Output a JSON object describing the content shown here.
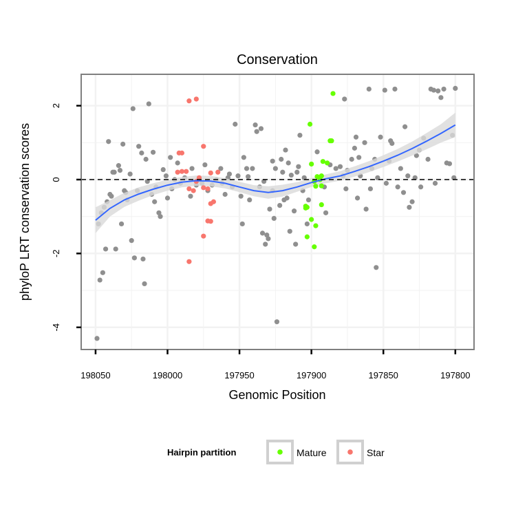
{
  "chart_data": {
    "type": "scatter",
    "title": "Conservation",
    "xlabel": "Genomic Position",
    "ylabel": "phyloP LRT conservation scores",
    "x_reversed": true,
    "xlim": [
      198060,
      197787
    ],
    "ylim": [
      -4.6,
      2.85
    ],
    "x_ticks": [
      198050,
      198000,
      197950,
      197900,
      197850,
      197800
    ],
    "y_ticks": [
      2,
      0,
      -2,
      -4
    ],
    "reference_line": {
      "y": 0,
      "style": "dashed",
      "color": "#000000"
    },
    "grid": true,
    "legend": {
      "title": "Hairpin partition",
      "position": "bottom",
      "entries": [
        {
          "label": "Mature",
          "color": "#66ff00"
        },
        {
          "label": "Star",
          "color": "#f8766d"
        }
      ]
    },
    "colors": {
      "background": "#ffffff",
      "gray_points": "#8f8f8f",
      "smooth_line": "#3366ff",
      "ribbon": "#d9d9d9",
      "panel_border": "#7f7f7f",
      "gridlines": "#f2f2f2"
    },
    "smooth": {
      "method": "loess",
      "x": [
        198050,
        198040,
        198030,
        198020,
        198010,
        198000,
        197990,
        197980,
        197970,
        197960,
        197950,
        197940,
        197930,
        197920,
        197910,
        197900,
        197890,
        197880,
        197870,
        197860,
        197850,
        197840,
        197830,
        197820,
        197810,
        197800
      ],
      "y": [
        -1.1,
        -0.78,
        -0.55,
        -0.39,
        -0.26,
        -0.15,
        -0.07,
        -0.03,
        -0.04,
        -0.1,
        -0.2,
        -0.3,
        -0.35,
        -0.3,
        -0.2,
        -0.08,
        0.02,
        0.1,
        0.22,
        0.35,
        0.5,
        0.66,
        0.84,
        1.04,
        1.25,
        1.48
      ],
      "lower": [
        -1.45,
        -1.0,
        -0.74,
        -0.57,
        -0.42,
        -0.3,
        -0.21,
        -0.17,
        -0.18,
        -0.24,
        -0.34,
        -0.45,
        -0.52,
        -0.46,
        -0.33,
        -0.2,
        -0.1,
        -0.03,
        0.08,
        0.2,
        0.34,
        0.49,
        0.65,
        0.82,
        1.0,
        1.15
      ],
      "upper": [
        -0.75,
        -0.56,
        -0.36,
        -0.21,
        -0.1,
        0.0,
        0.07,
        0.11,
        0.1,
        0.04,
        -0.06,
        -0.15,
        -0.18,
        -0.14,
        -0.07,
        0.04,
        0.14,
        0.23,
        0.36,
        0.5,
        0.66,
        0.83,
        1.03,
        1.26,
        1.5,
        1.81
      ]
    },
    "series": [
      {
        "name": "Mature",
        "color": "#66ff00",
        "points": [
          [
            197901,
            1.5
          ],
          [
            197900,
            0.42
          ],
          [
            197892,
            0.49
          ],
          [
            197889,
            0.45
          ],
          [
            197887,
            1.05
          ],
          [
            197886,
            1.05
          ],
          [
            197896,
            0.08
          ],
          [
            197893,
            0.1
          ],
          [
            197898,
            -0.05
          ],
          [
            197894,
            0.0
          ],
          [
            197897,
            -0.18
          ],
          [
            197893,
            -0.17
          ],
          [
            197904,
            -0.72
          ],
          [
            197903,
            -0.75
          ],
          [
            197904,
            -0.77
          ],
          [
            197893,
            -0.68
          ],
          [
            197900,
            -1.08
          ],
          [
            197897,
            -1.25
          ],
          [
            197903,
            -1.55
          ],
          [
            197898,
            -1.82
          ],
          [
            197885,
            2.33
          ]
        ]
      },
      {
        "name": "Star",
        "color": "#f8766d",
        "points": [
          [
            197985,
            2.13
          ],
          [
            197980,
            2.18
          ],
          [
            197992,
            0.72
          ],
          [
            197990,
            0.72
          ],
          [
            197975,
            0.9
          ],
          [
            197993,
            0.2
          ],
          [
            197990,
            0.22
          ],
          [
            197987,
            0.22
          ],
          [
            197970,
            0.18
          ],
          [
            197965,
            0.2
          ],
          [
            197978,
            0.05
          ],
          [
            197980,
            -0.05
          ],
          [
            197975,
            -0.22
          ],
          [
            197972,
            -0.25
          ],
          [
            197985,
            -0.25
          ],
          [
            197982,
            -0.3
          ],
          [
            197968,
            -0.6
          ],
          [
            197970,
            -0.65
          ],
          [
            197972,
            -1.12
          ],
          [
            197970,
            -1.13
          ],
          [
            197975,
            -1.53
          ],
          [
            197985,
            -2.22
          ]
        ]
      },
      {
        "name": "",
        "color": "#8f8f8f",
        "points": [
          [
            198049,
            -4.3
          ],
          [
            198047,
            -2.72
          ],
          [
            198045,
            -2.52
          ],
          [
            198043,
            -1.88
          ],
          [
            198036,
            -1.88
          ],
          [
            198048,
            -1.2
          ],
          [
            198046,
            -0.9
          ],
          [
            198044,
            -0.75
          ],
          [
            198040,
            -0.4
          ],
          [
            198041,
            1.03
          ],
          [
            198038,
            0.2
          ],
          [
            198034,
            0.38
          ],
          [
            198033,
            0.25
          ],
          [
            198031,
            0.96
          ],
          [
            198030,
            -0.3
          ],
          [
            198028,
            -0.55
          ],
          [
            198025,
            -1.65
          ],
          [
            198024,
            1.92
          ],
          [
            198023,
            -2.12
          ],
          [
            198020,
            0.9
          ],
          [
            198018,
            0.72
          ],
          [
            198017,
            -2.15
          ],
          [
            198016,
            -2.82
          ],
          [
            198014,
            -0.05
          ],
          [
            198013,
            2.05
          ],
          [
            198010,
            0.74
          ],
          [
            198008,
            -0.2
          ],
          [
            198006,
            -0.9
          ],
          [
            198005,
            -1.0
          ],
          [
            198003,
            0.27
          ],
          [
            198000,
            -0.5
          ],
          [
            197998,
            0.6
          ],
          [
            197997,
            -0.25
          ],
          [
            197995,
            0.0
          ],
          [
            197991,
            -0.1
          ],
          [
            197988,
            0.05
          ],
          [
            197983,
            0.3
          ],
          [
            197980,
            -0.15
          ],
          [
            197978,
            0.0
          ],
          [
            197974,
            0.4
          ],
          [
            197972,
            -0.3
          ],
          [
            197969,
            -0.15
          ],
          [
            197966,
            0.0
          ],
          [
            197963,
            0.3
          ],
          [
            197958,
            0.05
          ],
          [
            197955,
            -0.2
          ],
          [
            197953,
            1.5
          ],
          [
            197951,
            0.1
          ],
          [
            197948,
            -1.2
          ],
          [
            197947,
            0.6
          ],
          [
            197945,
            0.3
          ],
          [
            197943,
            -0.55
          ],
          [
            197939,
            1.48
          ],
          [
            197938,
            1.3
          ],
          [
            197935,
            1.38
          ],
          [
            197932,
            -1.75
          ],
          [
            197930,
            -1.6
          ],
          [
            197929,
            -0.8
          ],
          [
            197927,
            -0.3
          ],
          [
            197925,
            0.3
          ],
          [
            197922,
            -0.7
          ],
          [
            197920,
            0.2
          ],
          [
            197918,
            0.8
          ],
          [
            197917,
            -0.5
          ],
          [
            197915,
            -1.4
          ],
          [
            197912,
            -0.85
          ],
          [
            197910,
            0.2
          ],
          [
            197908,
            1.2
          ],
          [
            197906,
            -0.3
          ],
          [
            197905,
            0.05
          ],
          [
            197903,
            -1.2
          ],
          [
            197924,
            -3.85
          ],
          [
            197931,
            -1.5
          ],
          [
            197926,
            -1.05
          ],
          [
            197921,
            0.55
          ],
          [
            197914,
            0.12
          ],
          [
            197880,
            0.35
          ],
          [
            197877,
            2.18
          ],
          [
            197875,
            0.25
          ],
          [
            197872,
            0.55
          ],
          [
            197870,
            0.85
          ],
          [
            197868,
            -0.5
          ],
          [
            197866,
            0.1
          ],
          [
            197863,
            1.0
          ],
          [
            197860,
            2.45
          ],
          [
            197858,
            0.3
          ],
          [
            197855,
            -2.38
          ],
          [
            197852,
            1.15
          ],
          [
            197849,
            2.42
          ],
          [
            197846,
            0.5
          ],
          [
            197844,
            0.98
          ],
          [
            197842,
            2.45
          ],
          [
            197840,
            -0.2
          ],
          [
            197838,
            0.3
          ],
          [
            197835,
            1.43
          ],
          [
            197832,
            -0.75
          ],
          [
            197830,
            -0.6
          ],
          [
            197828,
            0.05
          ],
          [
            197825,
            0.8
          ],
          [
            197822,
            1.12
          ],
          [
            197819,
            0.55
          ],
          [
            197817,
            2.45
          ],
          [
            197815,
            2.42
          ],
          [
            197812,
            2.4
          ],
          [
            197810,
            2.22
          ],
          [
            197808,
            2.45
          ],
          [
            197806,
            0.45
          ],
          [
            197804,
            0.43
          ],
          [
            197802,
            1.2
          ],
          [
            197800,
            2.47
          ],
          [
            197801,
            0.05
          ],
          [
            197883,
            0.3
          ],
          [
            197890,
            -0.9
          ],
          [
            197876,
            -0.25
          ],
          [
            197862,
            -0.8
          ],
          [
            197848,
            -0.1
          ],
          [
            197836,
            -0.35
          ],
          [
            197824,
            -0.2
          ],
          [
            197854,
            0.05
          ],
          [
            197867,
            0.6
          ],
          [
            197896,
            0.75
          ],
          [
            197902,
            -0.55
          ],
          [
            197911,
            -1.75
          ],
          [
            197936,
            -0.2
          ],
          [
            197960,
            -0.4
          ],
          [
            197984,
            -0.45
          ],
          [
            198011,
            -0.4
          ],
          [
            198026,
            0.15
          ],
          [
            198032,
            -1.2
          ],
          [
            198015,
            0.55
          ],
          [
            198001,
            0.1
          ],
          [
            197949,
            -0.45
          ],
          [
            197941,
            0.3
          ],
          [
            197919,
            -0.55
          ],
          [
            197957,
            0.15
          ],
          [
            198039,
            -0.45
          ],
          [
            198021,
            -0.3
          ],
          [
            197993,
            0.45
          ],
          [
            197962,
            -0.1
          ],
          [
            197933,
            -0.05
          ],
          [
            197909,
            0.35
          ],
          [
            197878,
            0.1
          ],
          [
            197856,
            0.55
          ],
          [
            197827,
            0.65
          ],
          [
            197814,
            -0.1
          ],
          [
            197845,
            1.05
          ],
          [
            197869,
            1.15
          ],
          [
            197887,
            0.4
          ],
          [
            197927,
            0.5
          ],
          [
            197944,
            0.08
          ],
          [
            197976,
            -0.1
          ],
          [
            198009,
            -0.6
          ],
          [
            198029,
            -0.35
          ],
          [
            198042,
            -0.6
          ],
          [
            198037,
            0.2
          ],
          [
            197934,
            -1.45
          ],
          [
            197916,
            0.45
          ],
          [
            197891,
            -0.2
          ],
          [
            197859,
            -0.25
          ],
          [
            197833,
            0.1
          ]
        ]
      }
    ]
  }
}
